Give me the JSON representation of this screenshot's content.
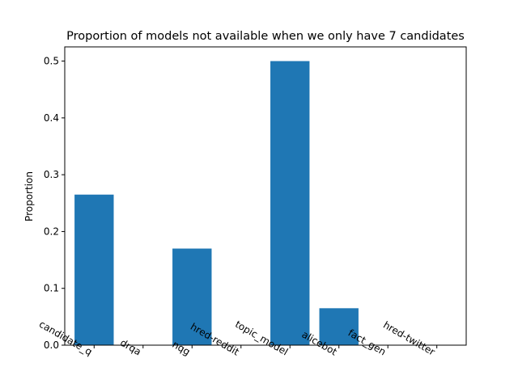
{
  "chart_data": {
    "type": "bar",
    "title": "Proportion of models not available when we only have 7 candidates",
    "xlabel": "",
    "ylabel": "Proportion",
    "categories": [
      "candidate_q",
      "drqa",
      "nqg",
      "hred-reddit",
      "topic_model",
      "alicebot",
      "fact_gen",
      "hred-twitter"
    ],
    "values": [
      0.265,
      0.0,
      0.17,
      0.0,
      0.5,
      0.065,
      0.0,
      0.0
    ],
    "yticks": [
      "0.0",
      "0.1",
      "0.2",
      "0.3",
      "0.4",
      "0.5"
    ],
    "ylim": [
      0,
      0.525
    ],
    "bar_color": "#1f77b4",
    "grid": false,
    "legend": "none"
  }
}
